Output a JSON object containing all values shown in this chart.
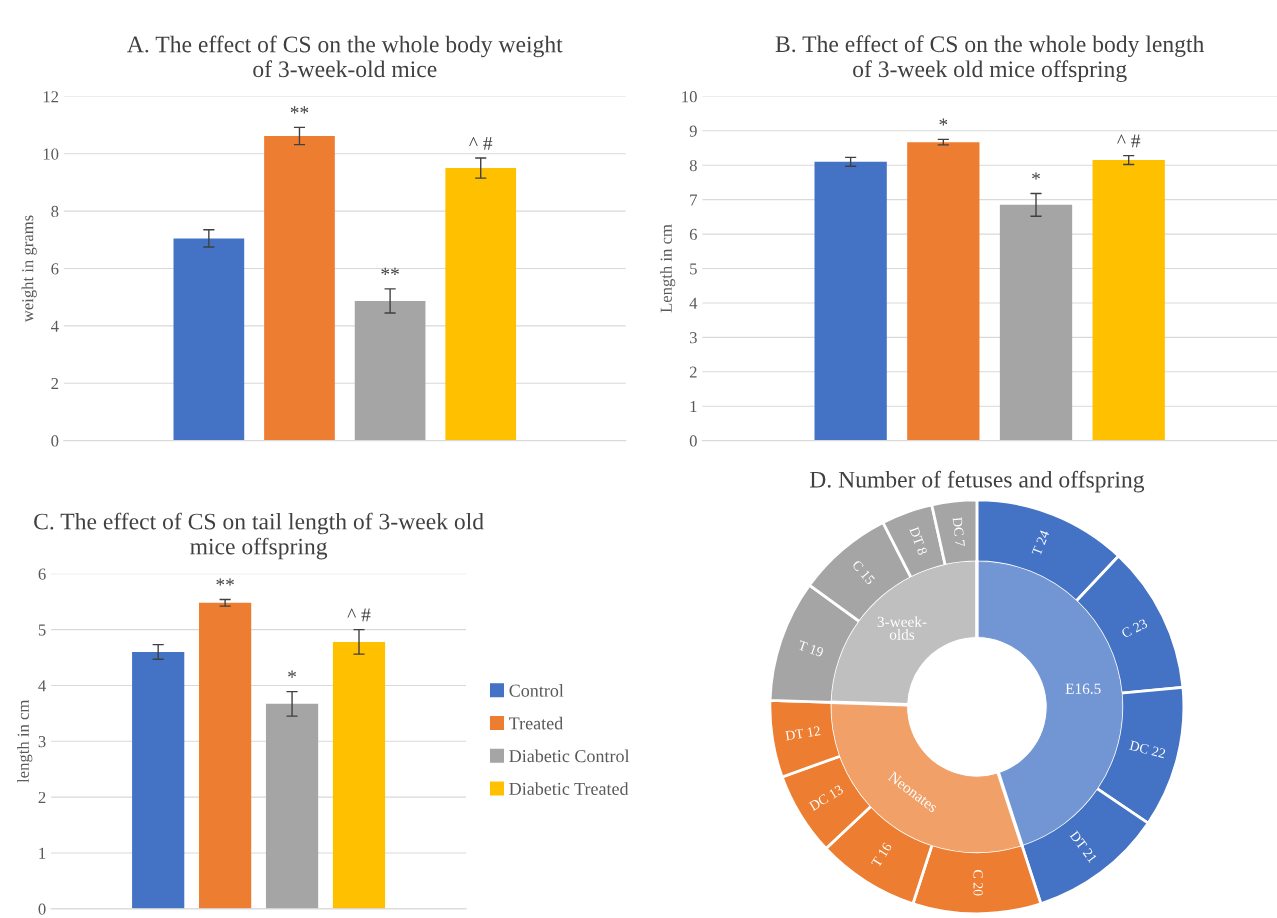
{
  "chart_data": [
    {
      "type": "bar",
      "title": "A. The effect of CS on the whole body weight\nof 3-week-old mice",
      "ylabel": "weight in grams",
      "categories": [
        null
      ],
      "ylim": [
        0,
        12
      ],
      "yticks": [
        0,
        2,
        4,
        6,
        8,
        10,
        12
      ],
      "grid": "y",
      "legend": false,
      "series": [
        {
          "color": "#4472c4",
          "values": [
            7.05
          ],
          "errors": [
            0.3
          ]
        },
        {
          "color": "#ed7d31",
          "values": [
            10.62
          ],
          "errors": [
            0.3
          ],
          "value_labels": [
            "**"
          ]
        },
        {
          "color": "#a5a5a5",
          "values": [
            4.87
          ],
          "errors": [
            0.42
          ],
          "value_labels": [
            "**"
          ]
        },
        {
          "color": "#ffc000",
          "values": [
            9.5
          ],
          "errors": [
            0.35
          ],
          "value_labels": [
            "^ #"
          ]
        }
      ]
    },
    {
      "type": "bar",
      "title": "B. The effect of CS on the whole body length\nof 3-week old mice offspring",
      "ylabel": "Length in cm",
      "categories": [
        null
      ],
      "ylim": [
        0,
        10
      ],
      "yticks": [
        0,
        1,
        2,
        3,
        4,
        5,
        6,
        7,
        8,
        9,
        10
      ],
      "grid": "y",
      "legend": false,
      "series": [
        {
          "color": "#4472c4",
          "values": [
            8.1
          ],
          "errors": [
            0.13
          ]
        },
        {
          "color": "#ed7d31",
          "values": [
            8.67
          ],
          "errors": [
            0.08
          ],
          "value_labels": [
            "*"
          ]
        },
        {
          "color": "#a5a5a5",
          "values": [
            6.85
          ],
          "errors": [
            0.33
          ],
          "value_labels": [
            "*"
          ]
        },
        {
          "color": "#ffc000",
          "values": [
            8.15
          ],
          "errors": [
            0.13
          ],
          "value_labels": [
            "^ #"
          ]
        }
      ]
    },
    {
      "type": "bar",
      "title": "C. The effect of CS on tail length of 3-week old\nmice offspring",
      "ylabel": "length in cm",
      "categories": [
        null
      ],
      "ylim": [
        0,
        6
      ],
      "yticks": [
        0,
        1,
        2,
        3,
        4,
        5,
        6
      ],
      "grid": "y",
      "legend": "right",
      "series": [
        {
          "name": "Control",
          "color": "#4472c4",
          "values": [
            4.6
          ],
          "errors": [
            0.13
          ]
        },
        {
          "name": "Treated",
          "color": "#ed7d31",
          "values": [
            5.48
          ],
          "errors": [
            0.06
          ],
          "value_labels": [
            "**"
          ]
        },
        {
          "name": "Diabetic Control",
          "color": "#a5a5a5",
          "values": [
            3.67
          ],
          "errors": [
            0.22
          ],
          "value_labels": [
            "*"
          ]
        },
        {
          "name": "Diabetic Treated",
          "color": "#ffc000",
          "values": [
            4.78
          ],
          "errors": [
            0.22
          ],
          "value_labels": [
            "^ #"
          ]
        }
      ]
    },
    {
      "type": "donut",
      "title": "D. Number of fetuses and offspring",
      "categories": [
        "T 24",
        "C 23",
        "DC 22",
        "DT 21",
        "C 20",
        "T 16",
        "DC 13",
        "DT 12",
        "T 19",
        "C 15",
        "DT 8",
        "DC 7"
      ],
      "annotations": [
        "E16.5",
        "Neonates",
        "3-week-\nolds"
      ],
      "series": [
        {
          "colors": [
            "#4472c4",
            "#4472c4",
            "#4472c4",
            "#4472c4",
            "#ed7d31",
            "#ed7d31",
            "#ed7d31",
            "#ed7d31",
            "#a5a5a5",
            "#a5a5a5",
            "#a5a5a5",
            "#a5a5a5"
          ],
          "values": [
            24,
            23,
            22,
            21,
            20,
            16,
            13,
            12,
            19,
            15,
            8,
            7
          ]
        },
        {
          "colors": [
            "#7296d3",
            "#7296d3",
            "#7296d3",
            "#7296d3",
            "#f1a068",
            "#f1a068",
            "#f1a068",
            "#f1a068",
            "#bfbfbf",
            "#bfbfbf",
            "#bfbfbf",
            "#bfbfbf"
          ],
          "values": [
            24,
            23,
            22,
            21,
            20,
            16,
            13,
            12,
            19,
            15,
            8,
            7
          ]
        }
      ]
    }
  ]
}
